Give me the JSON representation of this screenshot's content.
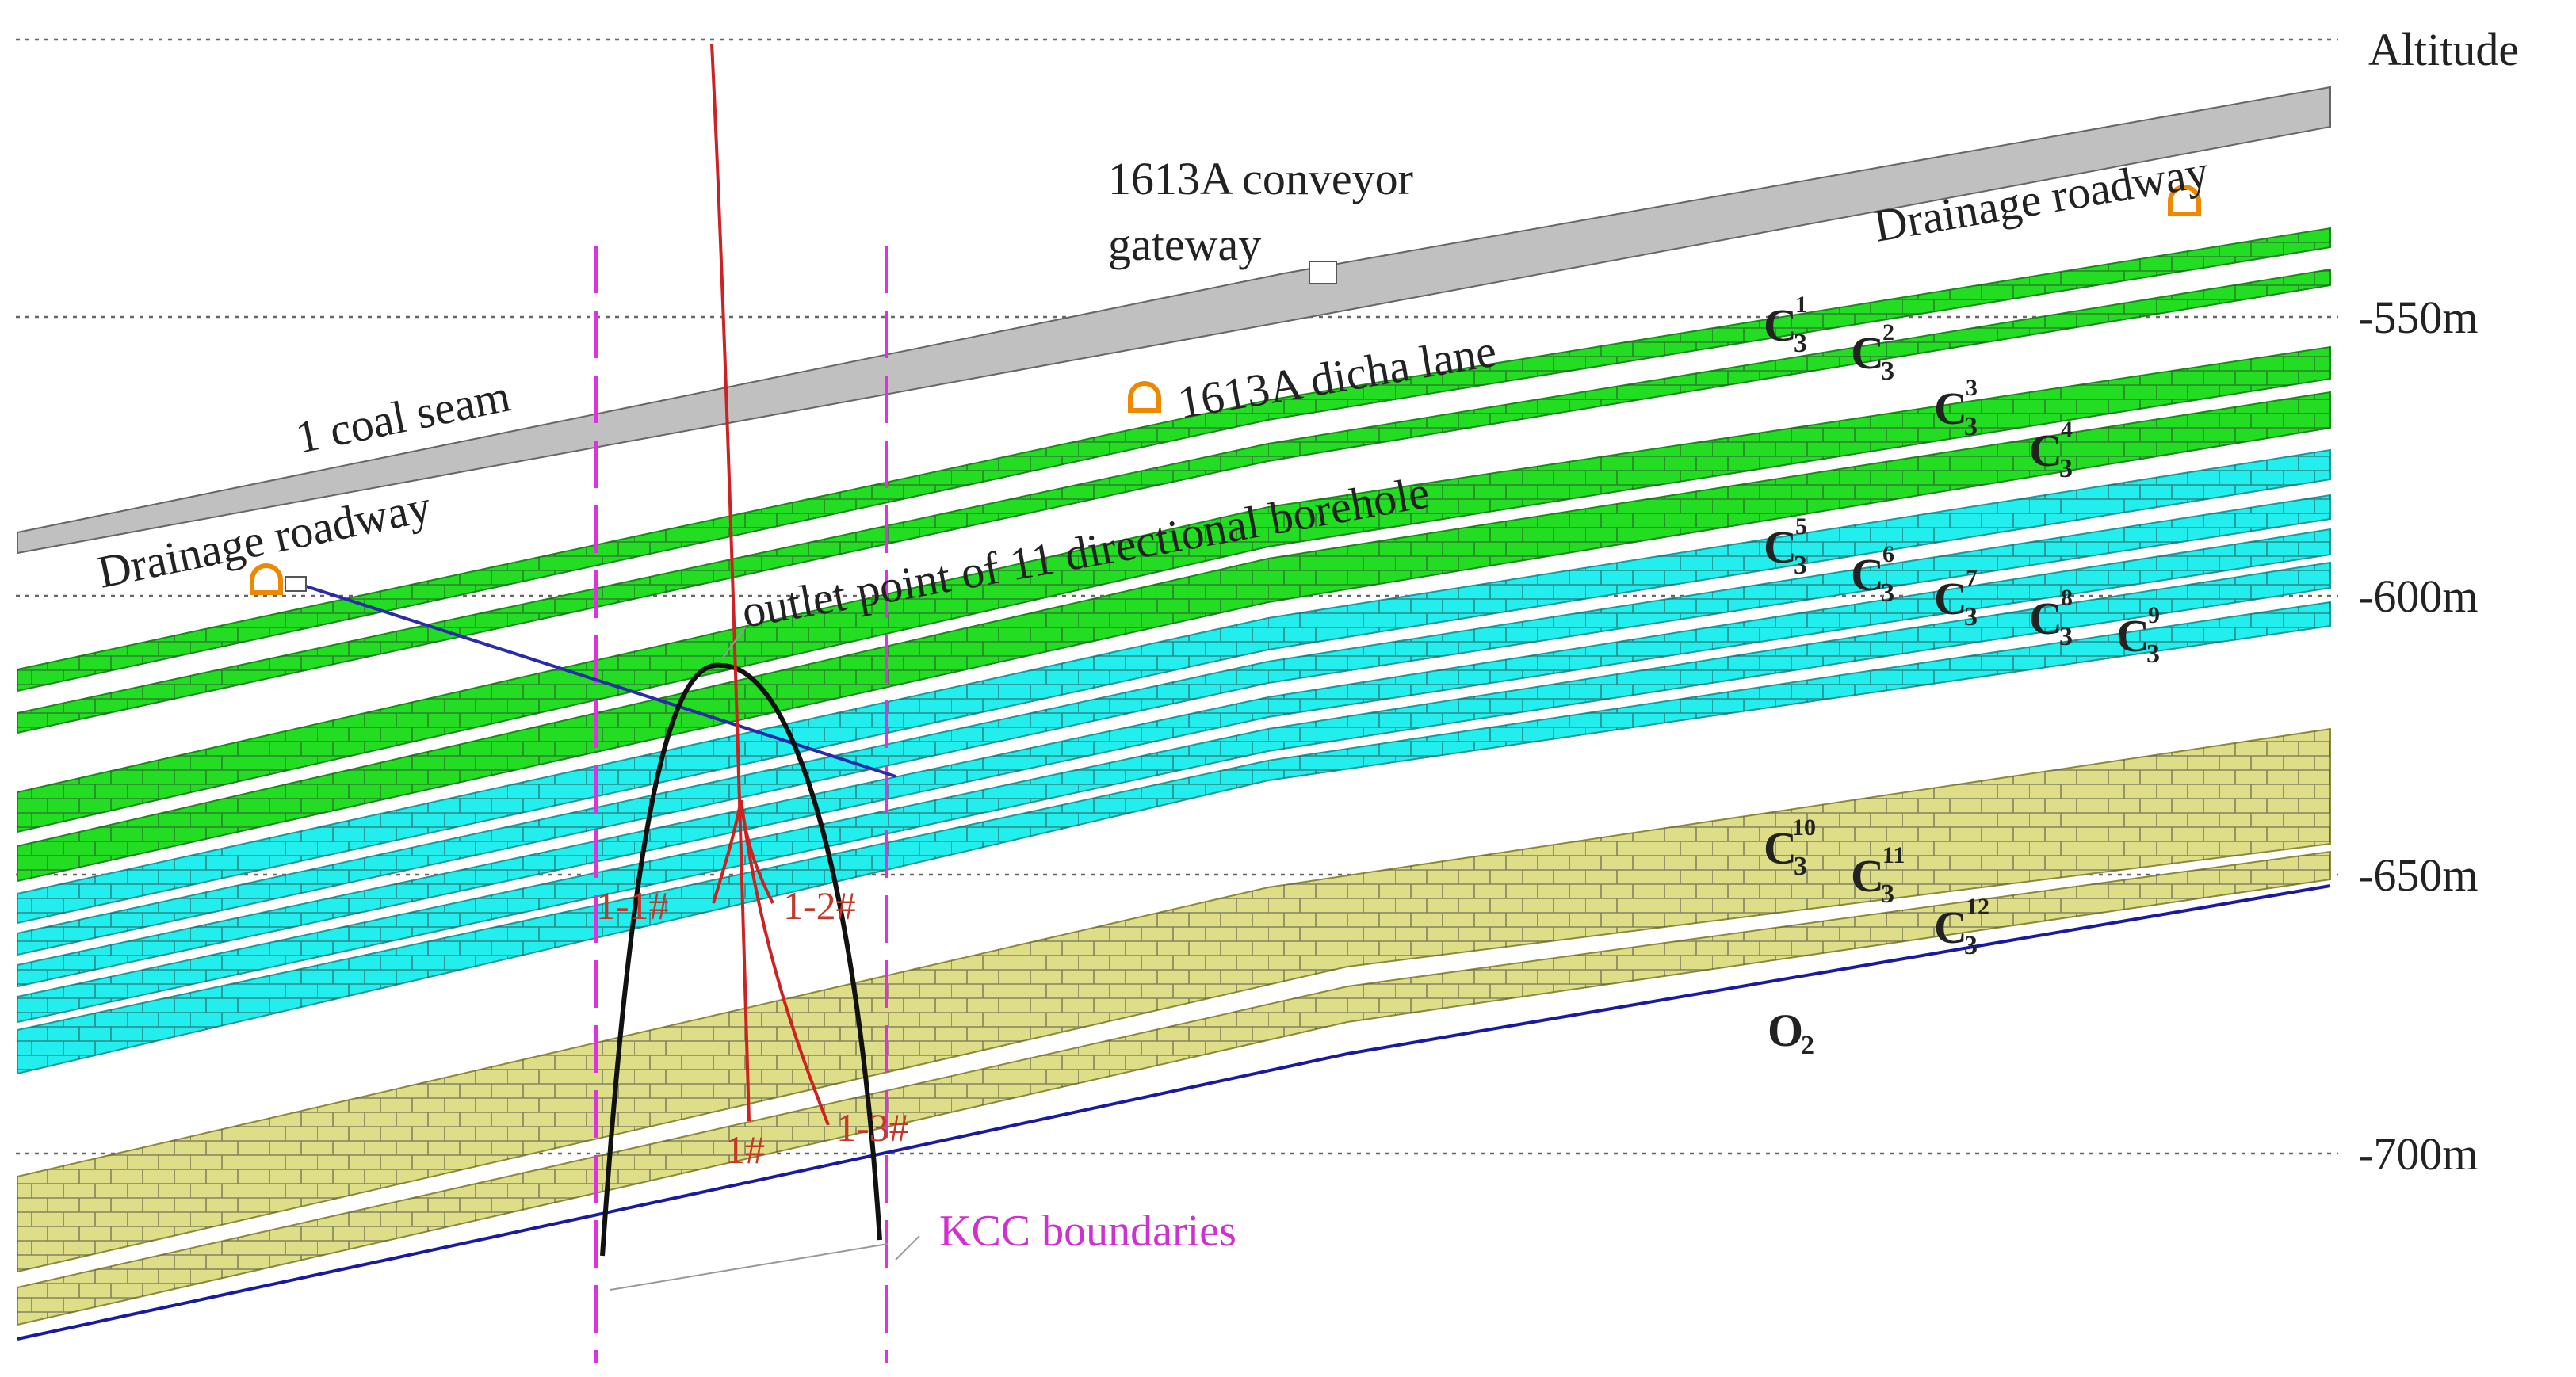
{
  "labels": {
    "altitude": "Altitude",
    "elevations": [
      "-550m",
      "-600m",
      "-650m",
      "-700m"
    ],
    "coal_seam": "1 coal seam",
    "drainage_left": "Drainage roadway",
    "drainage_right": "Drainage roadway",
    "conveyor_line1": "1613A conveyor",
    "conveyor_line2": "gateway",
    "dicha_lane": "1613A dicha lane",
    "outlet_point": "outlet point of 11 directional borehole",
    "kcc": "KCC boundaries",
    "o2_main": "O",
    "o2_sub": "2"
  },
  "boreholes": [
    "1-1#",
    "1-2#",
    "1#",
    "1-3#"
  ],
  "layers": [
    {
      "base": "C",
      "sub": "3",
      "sup": "1"
    },
    {
      "base": "C",
      "sub": "3",
      "sup": "2"
    },
    {
      "base": "C",
      "sub": "3",
      "sup": "3"
    },
    {
      "base": "C",
      "sub": "3",
      "sup": "4"
    },
    {
      "base": "C",
      "sub": "3",
      "sup": "5"
    },
    {
      "base": "C",
      "sub": "3",
      "sup": "6"
    },
    {
      "base": "C",
      "sub": "3",
      "sup": "7"
    },
    {
      "base": "C",
      "sub": "3",
      "sup": "8"
    },
    {
      "base": "C",
      "sub": "3",
      "sup": "9"
    },
    {
      "base": "C",
      "sub": "3",
      "sup": "10"
    },
    {
      "base": "C",
      "sub": "3",
      "sup": "11"
    },
    {
      "base": "C",
      "sub": "3",
      "sup": "12"
    }
  ],
  "colors": {
    "green_layer": "#22dd22",
    "cyan_layer": "#22eeee",
    "yellow_layer": "#dede88",
    "gray_seam": "#c0c0c0",
    "borehole_red": "#cc2222",
    "kcc_magenta": "#dd33dd",
    "o2_blue": "#1a1aa0",
    "roadway_orange": "#ee8800"
  }
}
